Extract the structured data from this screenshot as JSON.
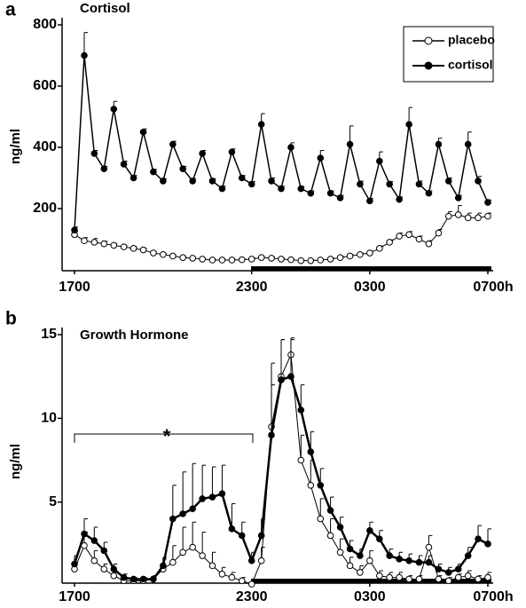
{
  "chart_data": [
    {
      "type": "line",
      "panel_label": "a",
      "title": "Cortisol",
      "y_label": "ng/ml",
      "x": [
        17,
        17.33,
        17.67,
        18,
        18.33,
        18.67,
        19,
        19.33,
        19.67,
        20,
        20.33,
        20.67,
        21,
        21.33,
        21.67,
        22,
        22.33,
        22.67,
        23,
        23.33,
        23.67,
        24,
        24.33,
        24.67,
        25,
        25.33,
        25.67,
        26,
        26.33,
        26.67,
        27,
        27.33,
        27.67,
        28,
        28.33,
        28.67,
        29,
        29.33,
        29.67,
        30,
        30.33,
        30.67,
        31
      ],
      "xlim": [
        17,
        31
      ],
      "xticks": [
        {
          "value": 17,
          "label": "1700"
        },
        {
          "value": 23,
          "label": "2300"
        },
        {
          "value": 27,
          "label": "0300"
        },
        {
          "value": 31,
          "label": "0700h"
        }
      ],
      "ylim": [
        0,
        800
      ],
      "yticks": [
        200,
        400,
        600,
        800
      ],
      "legend": "top-right",
      "series": [
        {
          "name": "placebo",
          "color": "#000000",
          "marker": "open",
          "line_width": 1,
          "values": [
            115,
            95,
            90,
            85,
            80,
            75,
            70,
            65,
            55,
            50,
            45,
            40,
            38,
            35,
            32,
            32,
            32,
            33,
            35,
            40,
            38,
            35,
            33,
            30,
            30,
            32,
            35,
            40,
            45,
            50,
            55,
            70,
            90,
            110,
            115,
            100,
            85,
            120,
            175,
            180,
            170,
            170,
            175
          ],
          "errors": [
            10,
            10,
            12,
            8,
            6,
            5,
            5,
            5,
            4,
            4,
            4,
            4,
            3,
            3,
            3,
            3,
            3,
            3,
            4,
            4,
            4,
            3,
            3,
            3,
            3,
            3,
            4,
            4,
            5,
            5,
            6,
            8,
            8,
            10,
            10,
            10,
            10,
            12,
            15,
            30,
            15,
            15,
            10
          ]
        },
        {
          "name": "cortisol",
          "color": "#000000",
          "marker": "filled",
          "line_width": 1.5,
          "values": [
            130,
            700,
            380,
            330,
            525,
            345,
            300,
            450,
            320,
            290,
            410,
            330,
            290,
            380,
            290,
            265,
            385,
            300,
            280,
            475,
            290,
            265,
            400,
            265,
            250,
            365,
            250,
            235,
            410,
            280,
            225,
            355,
            280,
            230,
            475,
            280,
            250,
            410,
            290,
            235,
            410,
            290,
            220
          ],
          "errors": [
            10,
            75,
            10,
            8,
            25,
            10,
            8,
            10,
            8,
            8,
            10,
            8,
            8,
            10,
            8,
            8,
            10,
            8,
            8,
            35,
            10,
            8,
            15,
            8,
            8,
            25,
            8,
            8,
            60,
            10,
            8,
            30,
            8,
            8,
            55,
            10,
            8,
            20,
            10,
            8,
            40,
            15,
            8
          ]
        }
      ]
    },
    {
      "type": "line",
      "panel_label": "b",
      "title": "Growth Hormone",
      "y_label": "ng/ml",
      "annotation": "*",
      "x": [
        17,
        17.33,
        17.67,
        18,
        18.33,
        18.67,
        19,
        19.33,
        19.67,
        20,
        20.33,
        20.67,
        21,
        21.33,
        21.67,
        22,
        22.33,
        22.67,
        23,
        23.33,
        23.67,
        24,
        24.33,
        24.67,
        25,
        25.33,
        25.67,
        26,
        26.33,
        26.67,
        27,
        27.33,
        27.67,
        28,
        28.33,
        28.67,
        29,
        29.33,
        29.67,
        30,
        30.33,
        30.67,
        31
      ],
      "xlim": [
        17,
        31
      ],
      "xticks": [
        {
          "value": 17,
          "label": "1700"
        },
        {
          "value": 23,
          "label": "2300"
        },
        {
          "value": 27,
          "label": "0300"
        },
        {
          "value": 31,
          "label": "0700h"
        }
      ],
      "ylim": [
        0,
        15
      ],
      "yticks": [
        5,
        10,
        15
      ],
      "series": [
        {
          "color": "#000000",
          "marker": "open",
          "line_width": 1,
          "values": [
            1.0,
            2.4,
            1.5,
            1.0,
            0.6,
            0.3,
            0.3,
            0.3,
            0.4,
            1.0,
            1.4,
            2.0,
            2.3,
            1.8,
            1.2,
            0.7,
            0.5,
            0.3,
            0.1,
            1.5,
            9.5,
            12.5,
            13.8,
            7.5,
            6.0,
            4.0,
            3.0,
            2.0,
            1.2,
            0.8,
            1.5,
            0.6,
            0.5,
            0.5,
            0.4,
            0.4,
            2.3,
            0.4,
            0.3,
            0.5,
            0.6,
            0.4,
            0.5
          ],
          "errors": [
            0.4,
            0.8,
            0.6,
            0.3,
            0.2,
            0.1,
            0.1,
            0.1,
            0.2,
            0.6,
            1.0,
            1.5,
            1.5,
            1.4,
            0.8,
            0.4,
            0.3,
            0.2,
            0.1,
            0.8,
            3.8,
            2.2,
            1.0,
            1.5,
            1.5,
            1.2,
            1.0,
            0.8,
            0.5,
            0.4,
            0.6,
            0.3,
            0.3,
            0.3,
            0.2,
            0.2,
            0.7,
            0.2,
            0.2,
            0.2,
            0.3,
            0.2,
            0.3
          ]
        },
        {
          "color": "#000000",
          "marker": "filled",
          "line_width": 2.5,
          "values": [
            1.3,
            3.1,
            2.7,
            2.1,
            1.0,
            0.5,
            0.4,
            0.4,
            0.4,
            1.2,
            4.0,
            4.3,
            4.6,
            5.2,
            5.3,
            5.5,
            3.4,
            3.0,
            1.5,
            3.0,
            9.0,
            12.3,
            12.5,
            10.5,
            8.0,
            6.0,
            4.5,
            3.5,
            2.2,
            1.8,
            3.3,
            2.8,
            1.8,
            1.6,
            1.5,
            1.4,
            1.4,
            1.0,
            0.8,
            1.0,
            1.8,
            2.8,
            2.5
          ],
          "errors": [
            0.5,
            0.9,
            0.8,
            0.5,
            0.3,
            0.2,
            0.1,
            0.1,
            0.2,
            0.5,
            2.0,
            2.5,
            2.7,
            2.0,
            1.8,
            1.7,
            1.5,
            0.8,
            0.5,
            1.0,
            3.0,
            2.4,
            2.2,
            1.5,
            1.2,
            1.0,
            0.8,
            0.6,
            0.5,
            0.4,
            0.5,
            0.5,
            0.4,
            0.4,
            0.4,
            0.4,
            0.4,
            0.3,
            0.3,
            0.3,
            0.5,
            0.8,
            0.9
          ]
        }
      ]
    }
  ]
}
